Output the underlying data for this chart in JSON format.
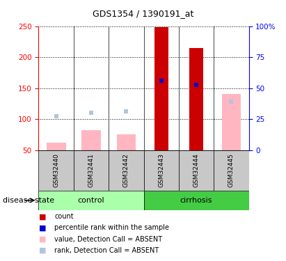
{
  "title": "GDS1354 / 1390191_at",
  "samples": [
    "GSM32440",
    "GSM32441",
    "GSM32442",
    "GSM32443",
    "GSM32444",
    "GSM32445"
  ],
  "count_values": [
    0,
    0,
    0,
    248,
    215,
    0
  ],
  "rank_values": [
    0,
    0,
    0,
    162,
    155,
    0
  ],
  "absent_value_values": [
    62,
    82,
    75,
    0,
    0,
    140
  ],
  "absent_rank_values": [
    105,
    110,
    113,
    0,
    0,
    128
  ],
  "ylim_left": [
    50,
    250
  ],
  "ylim_right": [
    0,
    100
  ],
  "yticks_left": [
    50,
    100,
    150,
    200,
    250
  ],
  "yticks_right": [
    0,
    25,
    50,
    75,
    100
  ],
  "right_tick_labels": [
    "0",
    "25",
    "50",
    "75",
    "100%"
  ],
  "count_color": "#CC0000",
  "rank_color": "#0000CC",
  "absent_value_color": "#FFB6C1",
  "absent_rank_color": "#B0C4DE",
  "bar_width": 0.4,
  "absent_bar_width": 0.55,
  "rank_marker_size": 5,
  "label_area_bg": "#C8C8C8",
  "control_color": "#AAFFAA",
  "cirrhosis_color": "#44CC44",
  "disease_state_label": "disease state",
  "control_label": "control",
  "cirrhosis_label": "cirrhosis",
  "legend_items": [
    [
      "#CC0000",
      "count"
    ],
    [
      "#0000CC",
      "percentile rank within the sample"
    ],
    [
      "#FFB6C1",
      "value, Detection Call = ABSENT"
    ],
    [
      "#B0C4DE",
      "rank, Detection Call = ABSENT"
    ]
  ],
  "title_fontsize": 9,
  "tick_fontsize": 7.5,
  "sample_label_fontsize": 6.5,
  "group_label_fontsize": 8,
  "legend_fontsize": 7,
  "disease_state_fontsize": 8
}
